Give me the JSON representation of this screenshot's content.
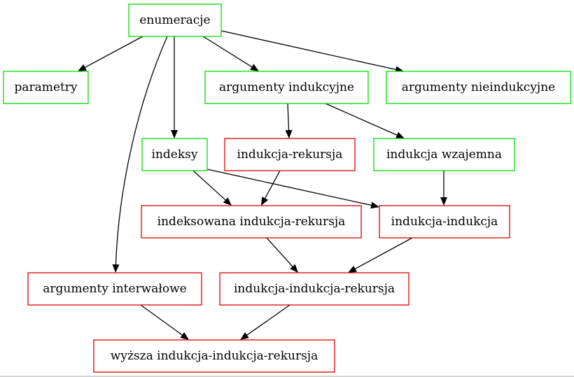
{
  "colors": {
    "green": "#00dd00",
    "red": "#dd0000",
    "edge": "#000000"
  },
  "nodes": {
    "enumeracje": {
      "label": "enumeracje",
      "color": "green"
    },
    "parametry": {
      "label": "parametry",
      "color": "green"
    },
    "argumenty_indukcyjne": {
      "label": "argumenty indukcyjne",
      "color": "green"
    },
    "argumenty_nieindukcyjne": {
      "label": "argumenty nieindukcyjne",
      "color": "green"
    },
    "indeksy": {
      "label": "indeksy",
      "color": "green"
    },
    "indukcja_rekursja": {
      "label": "indukcja-rekursja",
      "color": "red"
    },
    "indukcja_wzajemna": {
      "label": "indukcja wzajemna",
      "color": "green"
    },
    "indeksowana_indukcja_rekursja": {
      "label": "indeksowana indukcja-rekursja",
      "color": "red"
    },
    "indukcja_indukcja": {
      "label": "indukcja-indukcja",
      "color": "red"
    },
    "argumenty_interwalowe": {
      "label": "argumenty interwałowe",
      "color": "red"
    },
    "indukcja_indukcja_rekursja": {
      "label": "indukcja-indukcja-rekursja",
      "color": "red"
    },
    "wyzsza_indukcja_indukcja_rekursja": {
      "label": "wyższa indukcja-indukcja-rekursja",
      "color": "red"
    }
  },
  "edges": [
    {
      "from": "enumeracje",
      "to": "parametry"
    },
    {
      "from": "enumeracje",
      "to": "argumenty_indukcyjne"
    },
    {
      "from": "enumeracje",
      "to": "argumenty_nieindukcyjne"
    },
    {
      "from": "enumeracje",
      "to": "indeksy"
    },
    {
      "from": "enumeracje",
      "to": "argumenty_interwalowe"
    },
    {
      "from": "argumenty_indukcyjne",
      "to": "indukcja_rekursja"
    },
    {
      "from": "argumenty_indukcyjne",
      "to": "indukcja_wzajemna"
    },
    {
      "from": "indeksy",
      "to": "indeksowana_indukcja_rekursja"
    },
    {
      "from": "indeksy",
      "to": "indukcja_indukcja"
    },
    {
      "from": "indukcja_rekursja",
      "to": "indeksowana_indukcja_rekursja"
    },
    {
      "from": "indukcja_wzajemna",
      "to": "indukcja_indukcja"
    },
    {
      "from": "indeksowana_indukcja_rekursja",
      "to": "indukcja_indukcja_rekursja"
    },
    {
      "from": "indukcja_indukcja",
      "to": "indukcja_indukcja_rekursja"
    },
    {
      "from": "argumenty_interwalowe",
      "to": "wyzsza_indukcja_indukcja_rekursja"
    },
    {
      "from": "indukcja_indukcja_rekursja",
      "to": "wyzsza_indukcja_indukcja_rekursja"
    }
  ]
}
